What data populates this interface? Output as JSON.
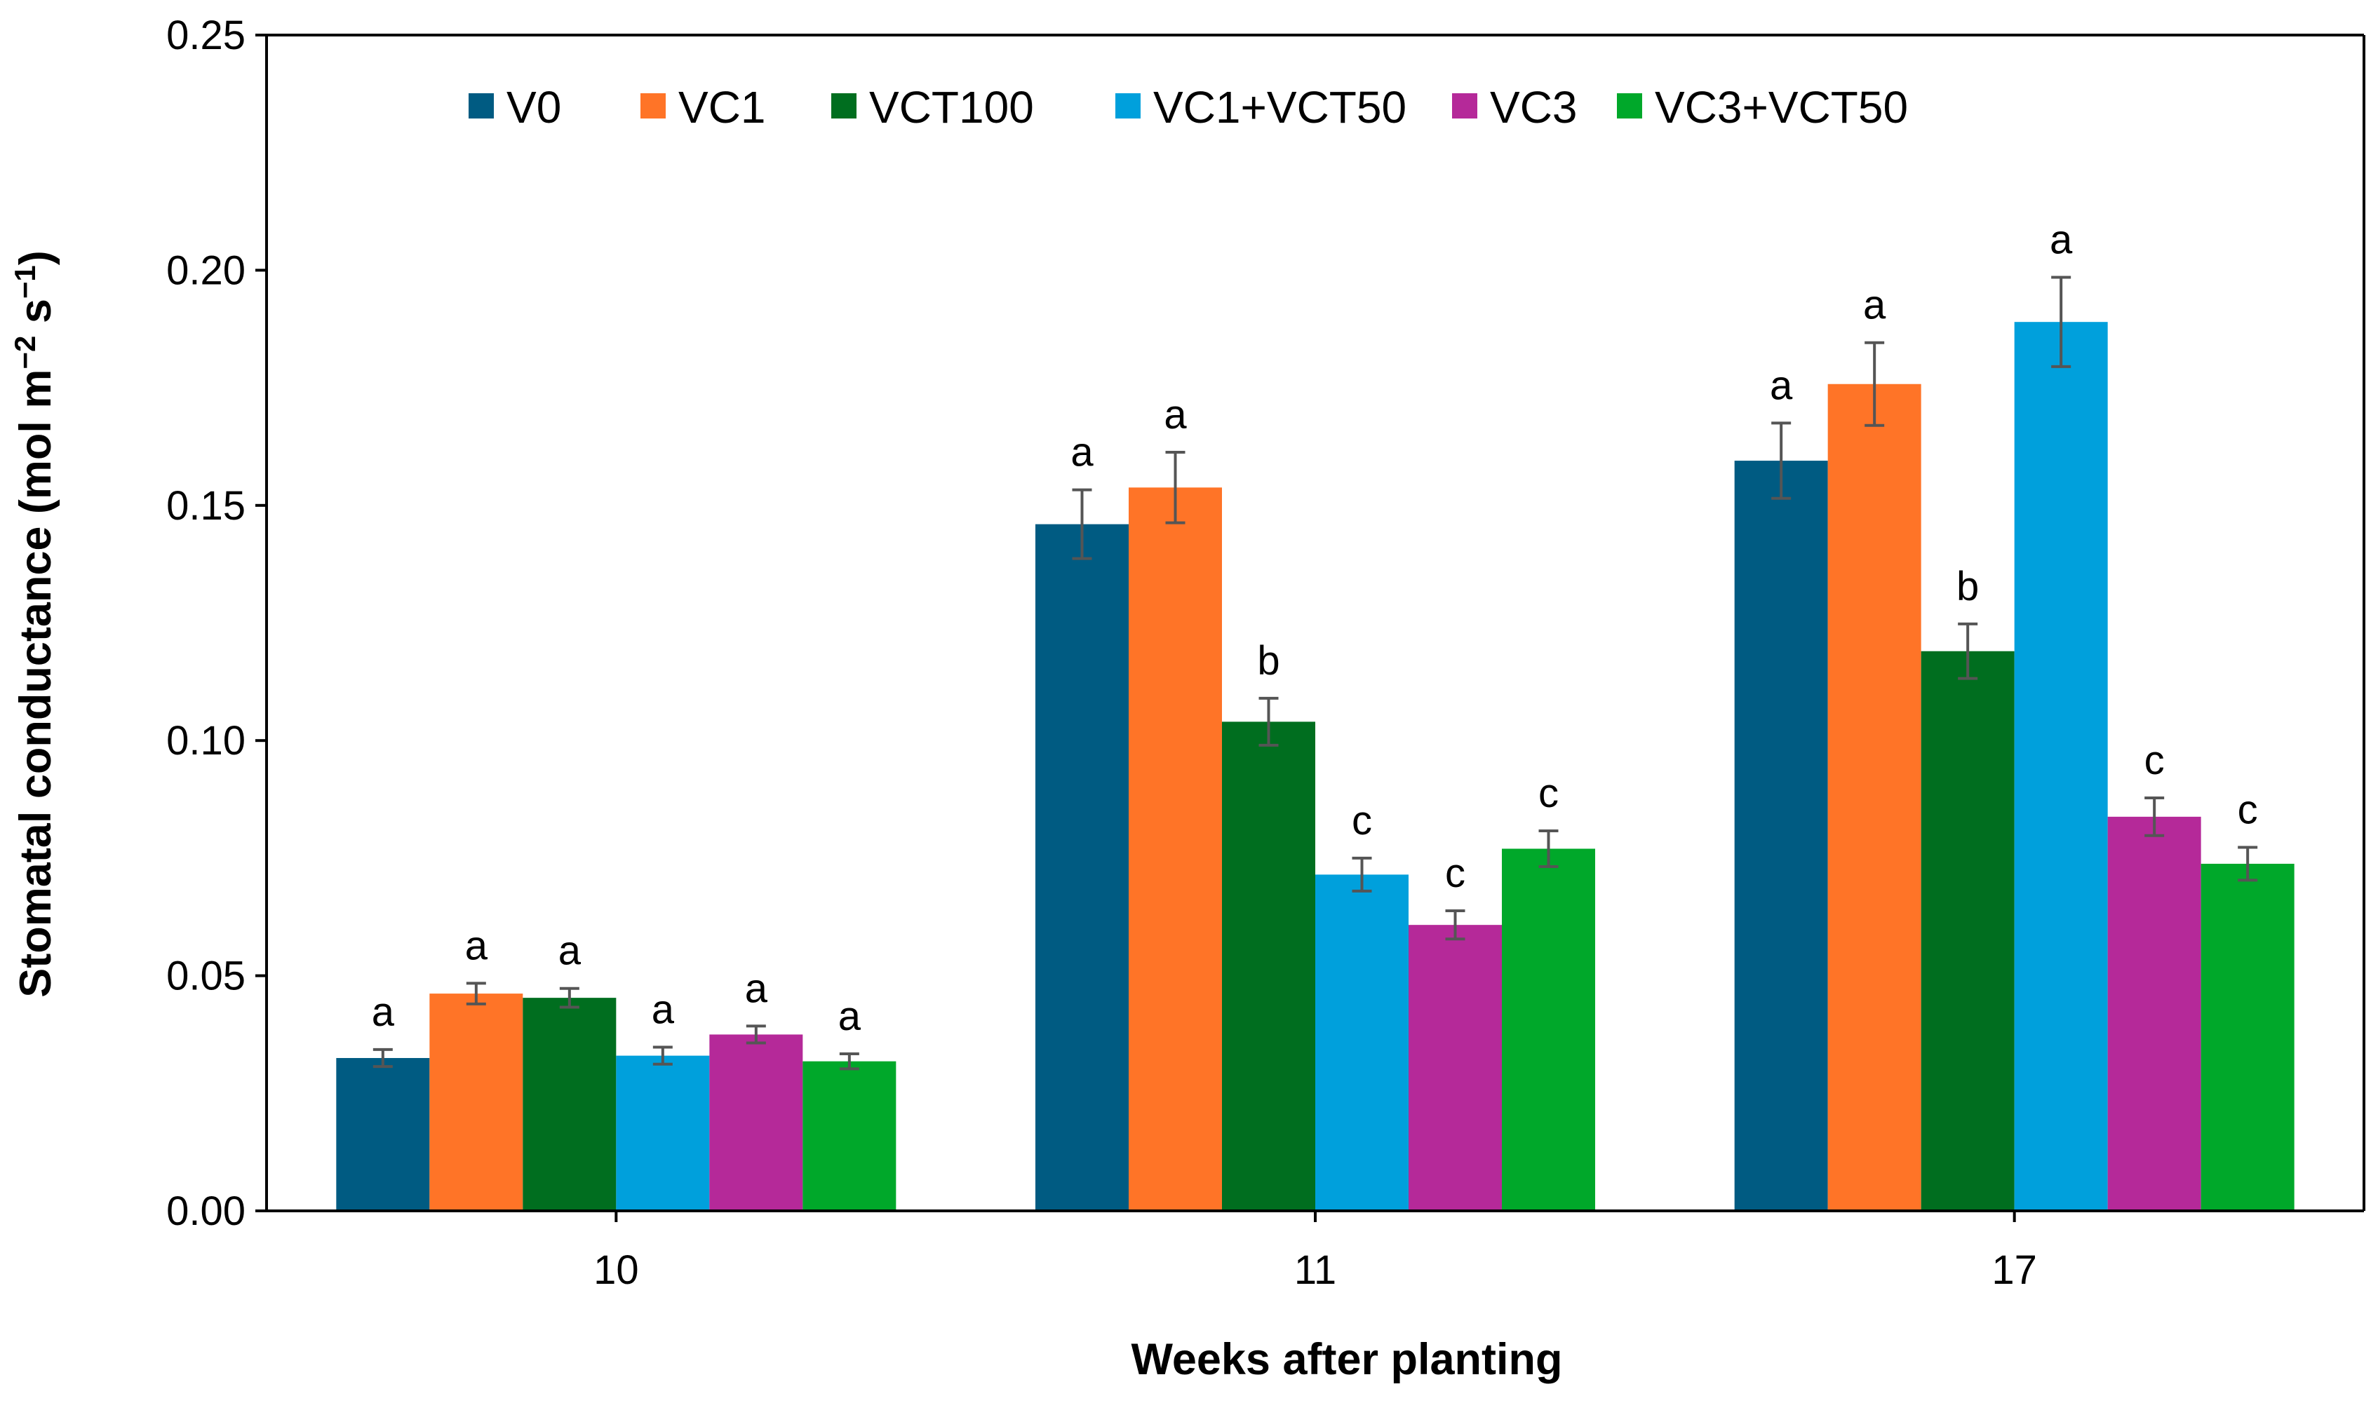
{
  "chart_data": {
    "type": "bar",
    "title": "",
    "xlabel": "Weeks after planting",
    "ylabel_main": "Stomatal conductance (mol m",
    "ylabel_sup1": "−2",
    "ylabel_mid": " s",
    "ylabel_sup2": "−1",
    "ylabel_end": ")",
    "ylim": [
      0,
      0.25
    ],
    "yticks": [
      "0.00",
      "0.05",
      "0.10",
      "0.15",
      "0.20",
      "0.25"
    ],
    "categories": [
      "10",
      "11",
      "17"
    ],
    "legend_position": "top-center",
    "series": [
      {
        "name": "V0",
        "color": "#005B82",
        "values": [
          0.0325,
          0.146,
          0.1595
        ],
        "errors": [
          0.0018,
          0.0073,
          0.008
        ],
        "letters": [
          "a",
          "a",
          "a"
        ]
      },
      {
        "name": "VC1",
        "color": "#FF7427",
        "values": [
          0.0462,
          0.1538,
          0.1758
        ],
        "errors": [
          0.0022,
          0.0075,
          0.0088
        ],
        "letters": [
          "a",
          "a",
          "a"
        ]
      },
      {
        "name": "VCT100",
        "color": "#006E1F",
        "values": [
          0.0453,
          0.104,
          0.119
        ],
        "errors": [
          0.002,
          0.005,
          0.0058
        ],
        "letters": [
          "a",
          "b",
          "b"
        ]
      },
      {
        "name": "VC1+VCT50",
        "color": "#00A0DC",
        "values": [
          0.033,
          0.0715,
          0.189
        ],
        "errors": [
          0.0018,
          0.0035,
          0.0095
        ],
        "letters": [
          "a",
          "c",
          "a"
        ]
      },
      {
        "name": "VC3",
        "color": "#B52999",
        "values": [
          0.0375,
          0.0608,
          0.0838
        ],
        "errors": [
          0.0018,
          0.003,
          0.004
        ],
        "letters": [
          "a",
          "c",
          "c"
        ]
      },
      {
        "name": "VC3+VCT50",
        "color": "#00A82A",
        "values": [
          0.0318,
          0.077,
          0.0738
        ],
        "errors": [
          0.0016,
          0.0038,
          0.0035
        ],
        "letters": [
          "a",
          "c",
          "c"
        ]
      }
    ]
  }
}
